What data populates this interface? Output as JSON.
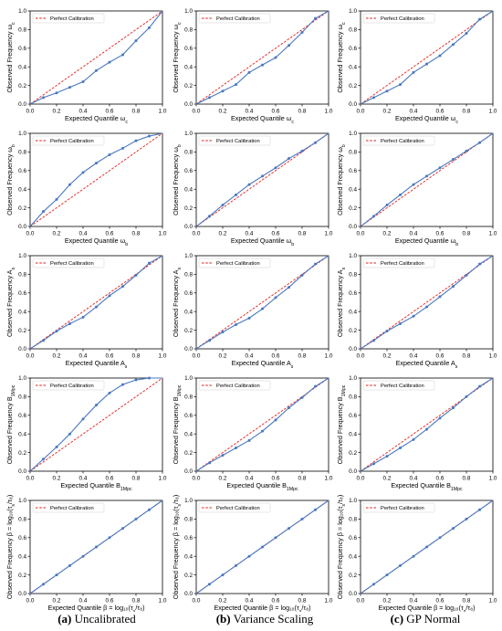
{
  "legend_label": "Perfect Calibration",
  "colors": {
    "model": "#4a78c0",
    "reference": "#e0201b",
    "axes": "#000000"
  },
  "x_ticks": [
    "0.0",
    "0.2",
    "0.4",
    "0.6",
    "0.8",
    "1.0"
  ],
  "y_ticks": [
    "0.0",
    "0.2",
    "0.4",
    "0.6",
    "0.8",
    "1.0"
  ],
  "column_captions": [
    {
      "letter": "(a)",
      "text": " Uncalibrated"
    },
    {
      "letter": "(b)",
      "text": " Variance Scaling"
    },
    {
      "letter": "(c)",
      "text": " GP Normal"
    }
  ],
  "rows": [
    {
      "xlabel": "Expected Quantile ω",
      "xsub": "c",
      "ylabel": "Observed Frequency ω",
      "ysub": "c"
    },
    {
      "xlabel": "Expected Quantile ω",
      "xsub": "b",
      "ylabel": "Observed Frequency ω",
      "ysub": "b"
    },
    {
      "xlabel": "Expected Quantile A",
      "xsub": "s",
      "ylabel": "Observed Frequency A",
      "ysub": "s"
    },
    {
      "xlabel": "Expected Quantile B",
      "xsub": "1Mpc",
      "ylabel": "Observed Frequency B",
      "ysub": "1Mpc"
    },
    {
      "xlabel": "Expected Quantile β = log₁₀(τ",
      "xsub": "s",
      "xtail": "/τ₈)",
      "ylabel": "Observed Frequency β = log₁₀(τ",
      "ysub": "s",
      "ytail": "/τ₈)"
    }
  ],
  "chart_data": [
    {
      "type": "line",
      "row": 0,
      "col": 0,
      "xlim": [
        0,
        1
      ],
      "ylim": [
        0,
        1
      ],
      "legend": "top-left",
      "series": [
        {
          "name": "Perfect Calibration",
          "x": [
            0,
            1
          ],
          "y": [
            0,
            1
          ]
        },
        {
          "x": [
            0.0,
            0.1,
            0.2,
            0.3,
            0.4,
            0.5,
            0.6,
            0.7,
            0.8,
            0.9,
            1.0
          ],
          "y": [
            0.0,
            0.07,
            0.12,
            0.18,
            0.24,
            0.36,
            0.45,
            0.53,
            0.68,
            0.82,
            1.0
          ]
        }
      ]
    },
    {
      "type": "line",
      "row": 0,
      "col": 1,
      "xlim": [
        0,
        1
      ],
      "ylim": [
        0,
        1
      ],
      "legend": "top-left",
      "series": [
        {
          "name": "Perfect Calibration",
          "x": [
            0,
            1
          ],
          "y": [
            0,
            1
          ]
        },
        {
          "x": [
            0.0,
            0.1,
            0.2,
            0.3,
            0.4,
            0.5,
            0.6,
            0.7,
            0.8,
            0.9,
            1.0
          ],
          "y": [
            0.0,
            0.07,
            0.14,
            0.21,
            0.34,
            0.42,
            0.5,
            0.63,
            0.77,
            0.92,
            1.0
          ]
        }
      ]
    },
    {
      "type": "line",
      "row": 0,
      "col": 2,
      "xlim": [
        0,
        1
      ],
      "ylim": [
        0,
        1
      ],
      "legend": "top-left",
      "series": [
        {
          "name": "Perfect Calibration",
          "x": [
            0,
            1
          ],
          "y": [
            0,
            1
          ]
        },
        {
          "x": [
            0.0,
            0.1,
            0.2,
            0.3,
            0.4,
            0.5,
            0.6,
            0.7,
            0.8,
            0.9,
            1.0
          ],
          "y": [
            0.0,
            0.07,
            0.14,
            0.21,
            0.34,
            0.43,
            0.52,
            0.64,
            0.76,
            0.91,
            1.0
          ]
        }
      ]
    },
    {
      "type": "line",
      "row": 1,
      "col": 0,
      "xlim": [
        0,
        1
      ],
      "ylim": [
        0,
        1
      ],
      "legend": "top-left",
      "series": [
        {
          "name": "Perfect Calibration",
          "x": [
            0,
            1
          ],
          "y": [
            0,
            1
          ]
        },
        {
          "x": [
            0.0,
            0.1,
            0.2,
            0.3,
            0.4,
            0.5,
            0.6,
            0.7,
            0.8,
            0.9,
            1.0
          ],
          "y": [
            0.0,
            0.16,
            0.29,
            0.45,
            0.58,
            0.68,
            0.77,
            0.84,
            0.92,
            0.97,
            1.0
          ]
        }
      ]
    },
    {
      "type": "line",
      "row": 1,
      "col": 1,
      "xlim": [
        0,
        1
      ],
      "ylim": [
        0,
        1
      ],
      "legend": "top-left",
      "series": [
        {
          "name": "Perfect Calibration",
          "x": [
            0,
            1
          ],
          "y": [
            0,
            1
          ]
        },
        {
          "x": [
            0.0,
            0.1,
            0.2,
            0.3,
            0.4,
            0.5,
            0.6,
            0.7,
            0.8,
            0.9,
            1.0
          ],
          "y": [
            0.0,
            0.11,
            0.23,
            0.34,
            0.45,
            0.54,
            0.63,
            0.73,
            0.81,
            0.9,
            1.0
          ]
        }
      ]
    },
    {
      "type": "line",
      "row": 1,
      "col": 2,
      "xlim": [
        0,
        1
      ],
      "ylim": [
        0,
        1
      ],
      "legend": "top-left",
      "series": [
        {
          "name": "Perfect Calibration",
          "x": [
            0,
            1
          ],
          "y": [
            0,
            1
          ]
        },
        {
          "x": [
            0.0,
            0.1,
            0.2,
            0.3,
            0.4,
            0.5,
            0.6,
            0.7,
            0.8,
            0.9,
            1.0
          ],
          "y": [
            0.0,
            0.11,
            0.23,
            0.34,
            0.45,
            0.54,
            0.63,
            0.72,
            0.81,
            0.9,
            1.0
          ]
        }
      ]
    },
    {
      "type": "line",
      "row": 2,
      "col": 0,
      "xlim": [
        0,
        1
      ],
      "ylim": [
        0,
        1
      ],
      "legend": "top-left",
      "series": [
        {
          "name": "Perfect Calibration",
          "x": [
            0,
            1
          ],
          "y": [
            0,
            1
          ]
        },
        {
          "x": [
            0.0,
            0.1,
            0.2,
            0.3,
            0.4,
            0.5,
            0.6,
            0.7,
            0.8,
            0.9,
            1.0
          ],
          "y": [
            0.0,
            0.09,
            0.19,
            0.27,
            0.34,
            0.45,
            0.57,
            0.67,
            0.79,
            0.92,
            1.0
          ]
        }
      ]
    },
    {
      "type": "line",
      "row": 2,
      "col": 1,
      "xlim": [
        0,
        1
      ],
      "ylim": [
        0,
        1
      ],
      "legend": "top-left",
      "series": [
        {
          "name": "Perfect Calibration",
          "x": [
            0,
            1
          ],
          "y": [
            0,
            1
          ]
        },
        {
          "x": [
            0.0,
            0.1,
            0.2,
            0.3,
            0.4,
            0.5,
            0.6,
            0.7,
            0.8,
            0.9,
            1.0
          ],
          "y": [
            0.0,
            0.09,
            0.18,
            0.26,
            0.33,
            0.43,
            0.55,
            0.66,
            0.79,
            0.91,
            1.0
          ]
        }
      ]
    },
    {
      "type": "line",
      "row": 2,
      "col": 2,
      "xlim": [
        0,
        1
      ],
      "ylim": [
        0,
        1
      ],
      "legend": "top-left",
      "series": [
        {
          "name": "Perfect Calibration",
          "x": [
            0,
            1
          ],
          "y": [
            0,
            1
          ]
        },
        {
          "x": [
            0.0,
            0.1,
            0.2,
            0.3,
            0.4,
            0.5,
            0.6,
            0.7,
            0.8,
            0.9,
            1.0
          ],
          "y": [
            0.0,
            0.09,
            0.19,
            0.27,
            0.35,
            0.45,
            0.56,
            0.67,
            0.79,
            0.91,
            1.0
          ]
        }
      ]
    },
    {
      "type": "line",
      "row": 3,
      "col": 0,
      "xlim": [
        0,
        1
      ],
      "ylim": [
        0,
        1
      ],
      "legend": "top-left",
      "series": [
        {
          "name": "Perfect Calibration",
          "x": [
            0,
            1
          ],
          "y": [
            0,
            1
          ]
        },
        {
          "x": [
            0.0,
            0.1,
            0.2,
            0.3,
            0.4,
            0.5,
            0.6,
            0.7,
            0.8,
            0.9,
            1.0
          ],
          "y": [
            0.0,
            0.13,
            0.26,
            0.4,
            0.56,
            0.71,
            0.84,
            0.93,
            0.98,
            1.0,
            1.0
          ]
        }
      ]
    },
    {
      "type": "line",
      "row": 3,
      "col": 1,
      "xlim": [
        0,
        1
      ],
      "ylim": [
        0,
        1
      ],
      "legend": "top-left",
      "series": [
        {
          "name": "Perfect Calibration",
          "x": [
            0,
            1
          ],
          "y": [
            0,
            1
          ]
        },
        {
          "x": [
            0.0,
            0.1,
            0.2,
            0.3,
            0.4,
            0.5,
            0.6,
            0.7,
            0.8,
            0.9,
            1.0
          ],
          "y": [
            0.0,
            0.09,
            0.17,
            0.25,
            0.33,
            0.43,
            0.55,
            0.68,
            0.79,
            0.91,
            1.0
          ]
        }
      ]
    },
    {
      "type": "line",
      "row": 3,
      "col": 2,
      "xlim": [
        0,
        1
      ],
      "ylim": [
        0,
        1
      ],
      "legend": "top-left",
      "series": [
        {
          "name": "Perfect Calibration",
          "x": [
            0,
            1
          ],
          "y": [
            0,
            1
          ]
        },
        {
          "x": [
            0.0,
            0.1,
            0.2,
            0.3,
            0.4,
            0.5,
            0.6,
            0.7,
            0.8,
            0.9,
            1.0
          ],
          "y": [
            0.0,
            0.08,
            0.16,
            0.25,
            0.34,
            0.45,
            0.57,
            0.68,
            0.8,
            0.91,
            1.0
          ]
        }
      ]
    },
    {
      "type": "line",
      "row": 4,
      "col": 0,
      "xlim": [
        0,
        1
      ],
      "ylim": [
        0,
        1
      ],
      "legend": "top-left",
      "series": [
        {
          "name": "Perfect Calibration",
          "x": [
            0,
            1
          ],
          "y": [
            0,
            1
          ]
        },
        {
          "x": [
            0.0,
            0.1,
            0.2,
            0.3,
            0.4,
            0.5,
            0.6,
            0.7,
            0.8,
            0.9,
            1.0
          ],
          "y": [
            0.0,
            0.1,
            0.2,
            0.3,
            0.4,
            0.5,
            0.6,
            0.7,
            0.8,
            0.9,
            1.0
          ]
        }
      ]
    },
    {
      "type": "line",
      "row": 4,
      "col": 1,
      "xlim": [
        0,
        1
      ],
      "ylim": [
        0,
        1
      ],
      "legend": "top-left",
      "series": [
        {
          "name": "Perfect Calibration",
          "x": [
            0,
            1
          ],
          "y": [
            0,
            1
          ]
        },
        {
          "x": [
            0.0,
            0.1,
            0.2,
            0.3,
            0.4,
            0.5,
            0.6,
            0.7,
            0.8,
            0.9,
            1.0
          ],
          "y": [
            0.0,
            0.1,
            0.2,
            0.3,
            0.4,
            0.5,
            0.6,
            0.7,
            0.8,
            0.9,
            1.0
          ]
        }
      ]
    },
    {
      "type": "line",
      "row": 4,
      "col": 2,
      "xlim": [
        0,
        1
      ],
      "ylim": [
        0,
        1
      ],
      "legend": "top-left",
      "series": [
        {
          "name": "Perfect Calibration",
          "x": [
            0,
            1
          ],
          "y": [
            0,
            1
          ]
        },
        {
          "x": [
            0.0,
            0.1,
            0.2,
            0.3,
            0.4,
            0.5,
            0.6,
            0.7,
            0.8,
            0.9,
            1.0
          ],
          "y": [
            0.0,
            0.1,
            0.2,
            0.3,
            0.4,
            0.5,
            0.6,
            0.7,
            0.8,
            0.9,
            1.0
          ]
        }
      ]
    }
  ]
}
